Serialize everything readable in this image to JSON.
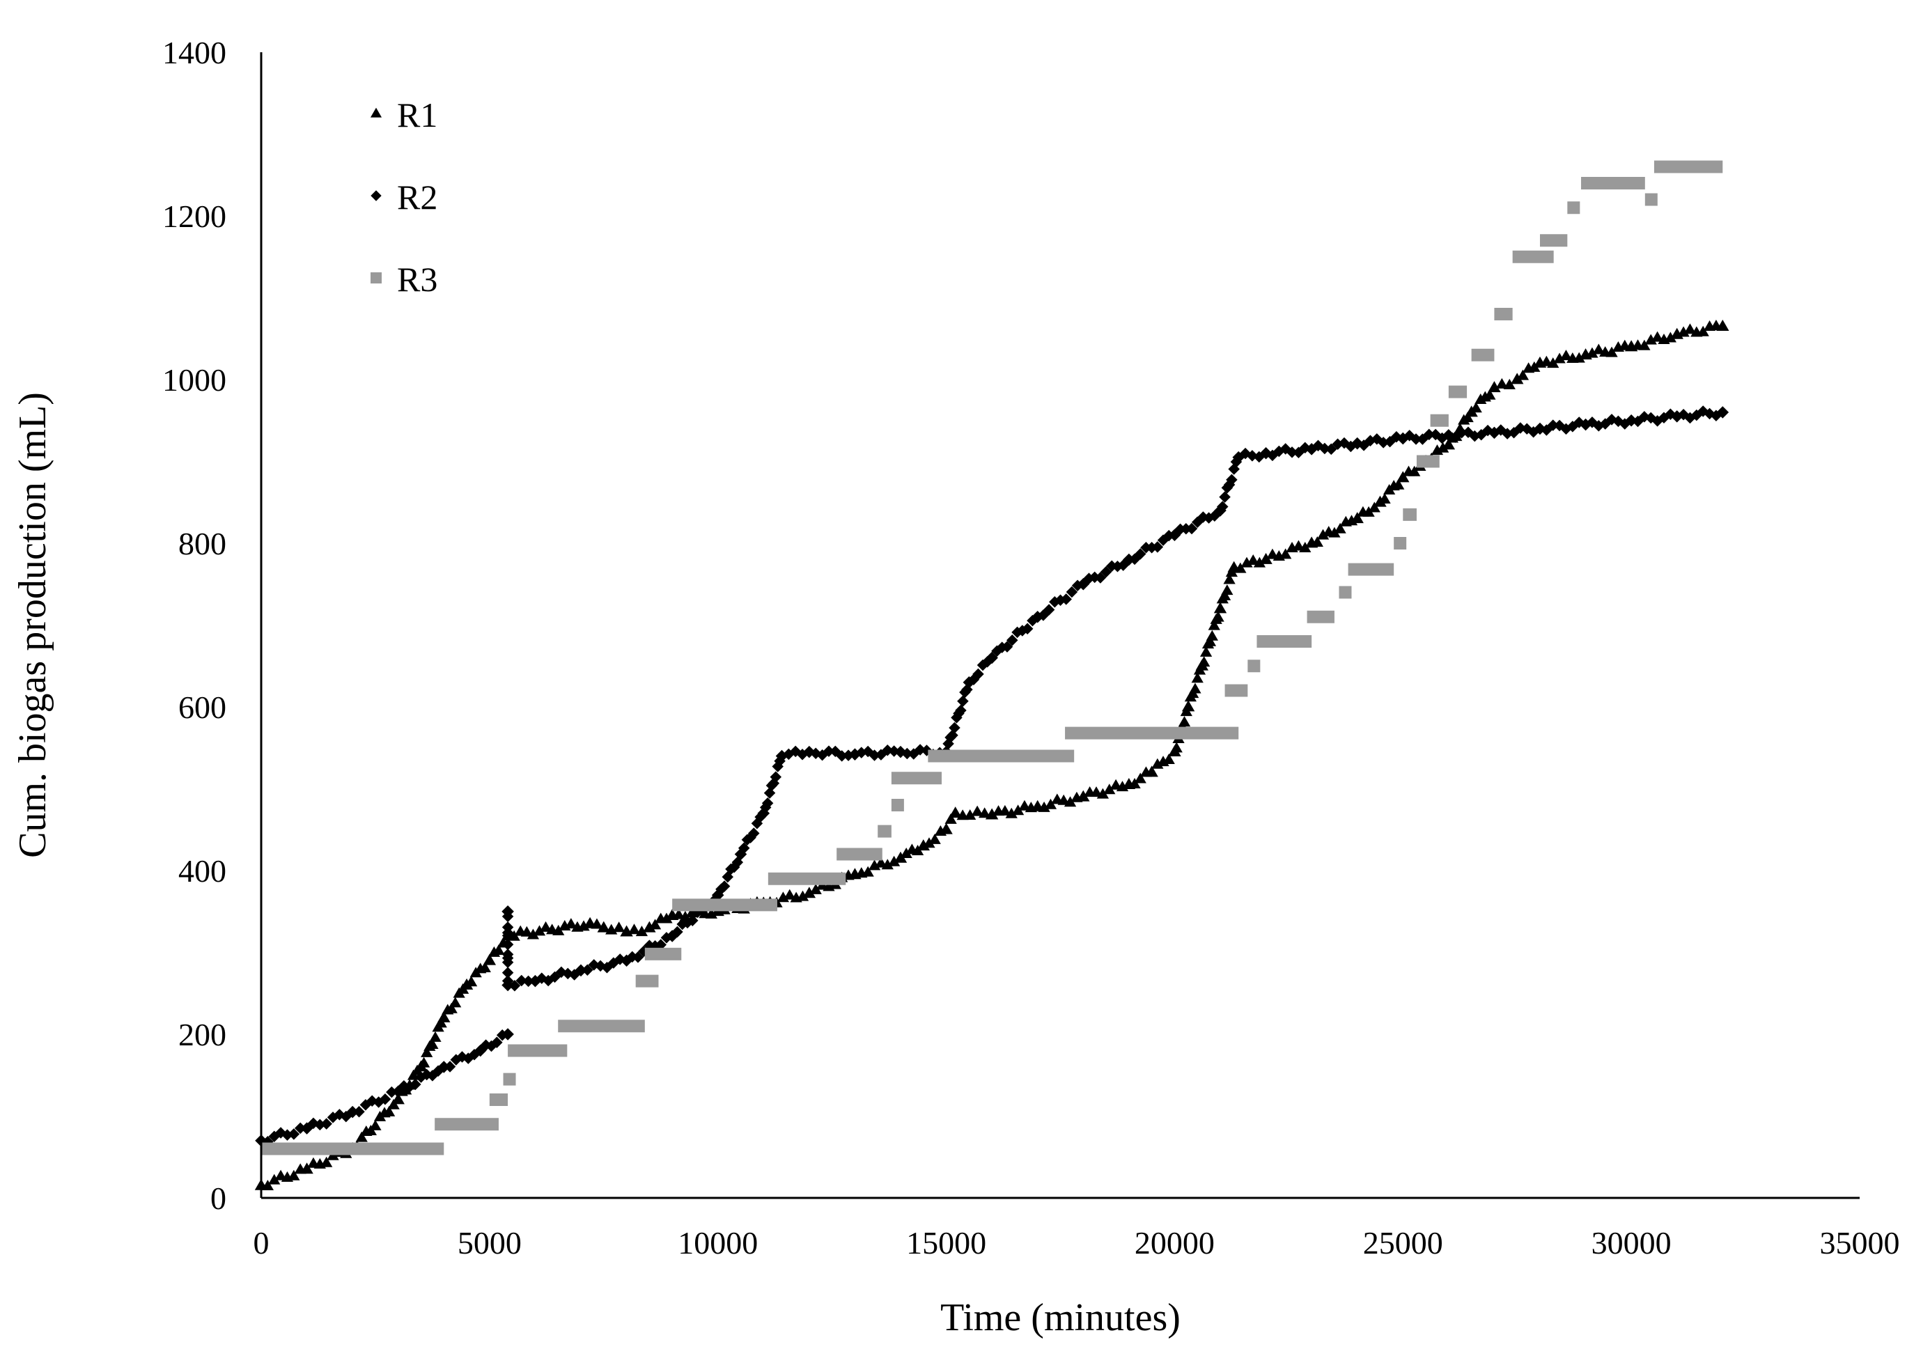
{
  "chart_data": {
    "type": "scatter",
    "title": "",
    "xlabel": "Time (minutes)",
    "ylabel": "Cum. biogas production (mL)",
    "xlim": [
      0,
      35000
    ],
    "ylim": [
      0,
      1400
    ],
    "xticks": [
      0,
      5000,
      10000,
      15000,
      20000,
      25000,
      30000,
      35000
    ],
    "yticks": [
      0,
      200,
      400,
      600,
      800,
      1000,
      1200,
      1400
    ],
    "grid": false,
    "legend": "top-left",
    "series": [
      {
        "name": "R1",
        "marker": "triangle",
        "color": "#000000",
        "points": [
          [
            0,
            15
          ],
          [
            1000,
            35
          ],
          [
            2000,
            60
          ],
          [
            3000,
            120
          ],
          [
            3500,
            160
          ],
          [
            4000,
            220
          ],
          [
            4500,
            260
          ],
          [
            5000,
            290
          ],
          [
            5400,
            320
          ],
          [
            7200,
            335
          ],
          [
            7500,
            330
          ],
          [
            8000,
            325
          ],
          [
            8500,
            330
          ],
          [
            9000,
            345
          ],
          [
            10000,
            350
          ],
          [
            11000,
            360
          ],
          [
            12000,
            372
          ],
          [
            13000,
            395
          ],
          [
            14000,
            415
          ],
          [
            14500,
            430
          ],
          [
            15000,
            450
          ],
          [
            15200,
            470
          ],
          [
            16000,
            468
          ],
          [
            17000,
            478
          ],
          [
            18000,
            490
          ],
          [
            19000,
            505
          ],
          [
            19500,
            520
          ],
          [
            20000,
            545
          ],
          [
            20300,
            600
          ],
          [
            20600,
            650
          ],
          [
            21000,
            720
          ],
          [
            21300,
            770
          ],
          [
            22000,
            780
          ],
          [
            23000,
            800
          ],
          [
            24000,
            830
          ],
          [
            24500,
            850
          ],
          [
            25000,
            880
          ],
          [
            25500,
            900
          ],
          [
            26000,
            920
          ],
          [
            26500,
            960
          ],
          [
            27000,
            990
          ],
          [
            27500,
            1000
          ],
          [
            28000,
            1020
          ],
          [
            29000,
            1030
          ],
          [
            30000,
            1040
          ],
          [
            31000,
            1055
          ],
          [
            32000,
            1065
          ]
        ]
      },
      {
        "name": "R2",
        "marker": "diamond",
        "color": "#000000",
        "points": [
          [
            0,
            70
          ],
          [
            1000,
            85
          ],
          [
            2000,
            105
          ],
          [
            3000,
            130
          ],
          [
            4000,
            160
          ],
          [
            4800,
            180
          ],
          [
            5400,
            200
          ],
          [
            5400,
            350
          ],
          [
            5400,
            260
          ],
          [
            6000,
            265
          ],
          [
            7000,
            278
          ],
          [
            8000,
            290
          ],
          [
            9000,
            320
          ],
          [
            10000,
            370
          ],
          [
            10500,
            420
          ],
          [
            11000,
            470
          ],
          [
            11400,
            540
          ],
          [
            12000,
            545
          ],
          [
            13000,
            542
          ],
          [
            14000,
            545
          ],
          [
            15000,
            545
          ],
          [
            15500,
            630
          ],
          [
            16000,
            660
          ],
          [
            17000,
            710
          ],
          [
            18000,
            750
          ],
          [
            19000,
            780
          ],
          [
            20000,
            810
          ],
          [
            21000,
            840
          ],
          [
            21400,
            905
          ],
          [
            22000,
            910
          ],
          [
            23000,
            915
          ],
          [
            24000,
            922
          ],
          [
            25000,
            928
          ],
          [
            26000,
            932
          ],
          [
            27000,
            935
          ],
          [
            28000,
            940
          ],
          [
            29000,
            945
          ],
          [
            30000,
            950
          ],
          [
            31000,
            955
          ],
          [
            32000,
            960
          ]
        ]
      },
      {
        "name": "R3",
        "marker": "square",
        "color": "#999999",
        "steps": [
          [
            0,
            4000,
            60
          ],
          [
            3800,
            5200,
            90
          ],
          [
            5000,
            5400,
            120
          ],
          [
            5300,
            5500,
            145
          ],
          [
            5400,
            6700,
            180
          ],
          [
            6500,
            8400,
            210
          ],
          [
            8200,
            8700,
            265
          ],
          [
            8400,
            9200,
            298
          ],
          [
            9000,
            11300,
            358
          ],
          [
            11100,
            12800,
            390
          ],
          [
            12600,
            13600,
            420
          ],
          [
            13500,
            13800,
            448
          ],
          [
            13800,
            14000,
            480
          ],
          [
            13800,
            14900,
            513
          ],
          [
            14600,
            17800,
            540
          ],
          [
            17600,
            21400,
            568
          ],
          [
            21100,
            21600,
            620
          ],
          [
            21600,
            21800,
            650
          ],
          [
            21800,
            23000,
            680
          ],
          [
            22900,
            23500,
            710
          ],
          [
            23600,
            23800,
            740
          ],
          [
            23800,
            24800,
            768
          ],
          [
            24800,
            25000,
            800
          ],
          [
            25000,
            25300,
            835
          ],
          [
            25300,
            25800,
            900
          ],
          [
            25600,
            26000,
            950
          ],
          [
            26000,
            26400,
            985
          ],
          [
            26500,
            27000,
            1030
          ],
          [
            27000,
            27400,
            1080
          ],
          [
            27400,
            28300,
            1150
          ],
          [
            28000,
            28600,
            1170
          ],
          [
            28600,
            28800,
            1210
          ],
          [
            28900,
            30300,
            1240
          ],
          [
            30300,
            30500,
            1220
          ],
          [
            30500,
            32000,
            1260
          ]
        ]
      }
    ]
  }
}
